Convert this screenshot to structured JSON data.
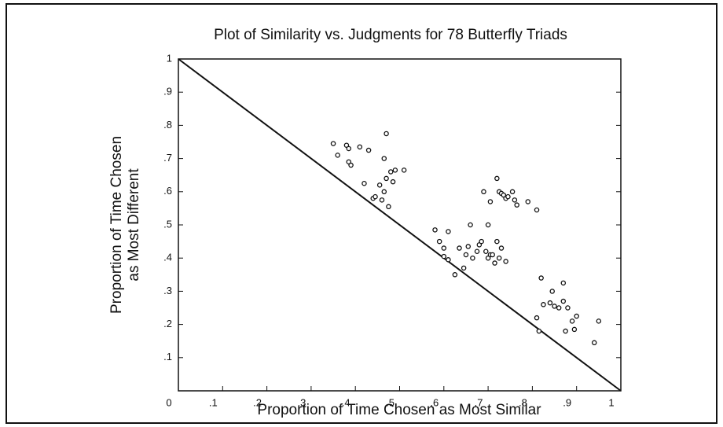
{
  "chart_data": {
    "type": "scatter",
    "title": "Plot of Similarity vs. Judgments for 78 Butterfly Triads",
    "xlabel": "Proportion of Time Chosen as Most Similar",
    "ylabel": [
      "Proportion of Time Chosen",
      "as Most Different"
    ],
    "x": [
      0.35,
      0.36,
      0.38,
      0.385,
      0.385,
      0.39,
      0.41,
      0.43,
      0.47,
      0.465,
      0.48,
      0.49,
      0.485,
      0.51,
      0.42,
      0.44,
      0.445,
      0.455,
      0.46,
      0.465,
      0.47,
      0.475,
      0.69,
      0.705,
      0.72,
      0.725,
      0.73,
      0.735,
      0.74,
      0.745,
      0.755,
      0.76,
      0.765,
      0.79,
      0.81,
      0.7,
      0.58,
      0.59,
      0.61,
      0.6,
      0.6,
      0.61,
      0.625,
      0.635,
      0.645,
      0.65,
      0.655,
      0.66,
      0.665,
      0.675,
      0.68,
      0.685,
      0.695,
      0.7,
      0.705,
      0.71,
      0.715,
      0.72,
      0.725,
      0.73,
      0.74,
      0.81,
      0.815,
      0.82,
      0.825,
      0.84,
      0.845,
      0.85,
      0.86,
      0.87,
      0.87,
      0.875,
      0.88,
      0.89,
      0.895,
      0.9,
      0.94,
      0.95
    ],
    "y": [
      0.745,
      0.71,
      0.74,
      0.73,
      0.69,
      0.68,
      0.735,
      0.725,
      0.775,
      0.7,
      0.66,
      0.665,
      0.63,
      0.665,
      0.625,
      0.58,
      0.585,
      0.62,
      0.575,
      0.6,
      0.64,
      0.555,
      0.6,
      0.57,
      0.64,
      0.6,
      0.595,
      0.59,
      0.58,
      0.585,
      0.6,
      0.575,
      0.56,
      0.57,
      0.545,
      0.5,
      0.485,
      0.45,
      0.48,
      0.43,
      0.405,
      0.395,
      0.35,
      0.43,
      0.37,
      0.41,
      0.435,
      0.5,
      0.4,
      0.42,
      0.44,
      0.45,
      0.42,
      0.4,
      0.41,
      0.41,
      0.385,
      0.45,
      0.4,
      0.43,
      0.39,
      0.22,
      0.18,
      0.34,
      0.26,
      0.265,
      0.3,
      0.255,
      0.25,
      0.325,
      0.27,
      0.18,
      0.25,
      0.21,
      0.185,
      0.225,
      0.145,
      0.21
    ],
    "xlim": [
      0,
      1
    ],
    "ylim": [
      0,
      1
    ],
    "xticks": [
      0,
      {
        "value": 0.1,
        "label": ".1"
      },
      {
        "value": 0.2,
        "label": ".2"
      },
      {
        "value": 0.3,
        "label": ".3"
      },
      {
        "value": 0.4,
        "label": ".4"
      },
      {
        "value": 0.5,
        "label": ".5"
      },
      {
        "value": 0.6,
        "label": ".6"
      },
      {
        "value": 0.7,
        "label": ".7"
      },
      {
        "value": 0.8,
        "label": ".8"
      },
      {
        "value": 0.9,
        "label": ".9"
      },
      1
    ],
    "yticks": [
      {
        "value": 0.1,
        "label": ".1"
      },
      {
        "value": 0.2,
        "label": ".2"
      },
      {
        "value": 0.3,
        "label": ".3"
      },
      {
        "value": 0.4,
        "label": ".4"
      },
      {
        "value": 0.5,
        "label": ".5"
      },
      {
        "value": 0.6,
        "label": ".6"
      },
      {
        "value": 0.7,
        "label": ".7"
      },
      {
        "value": 0.8,
        "label": ".8"
      },
      {
        "value": 0.9,
        "label": ".9"
      },
      1
    ],
    "color": "#111111"
  }
}
